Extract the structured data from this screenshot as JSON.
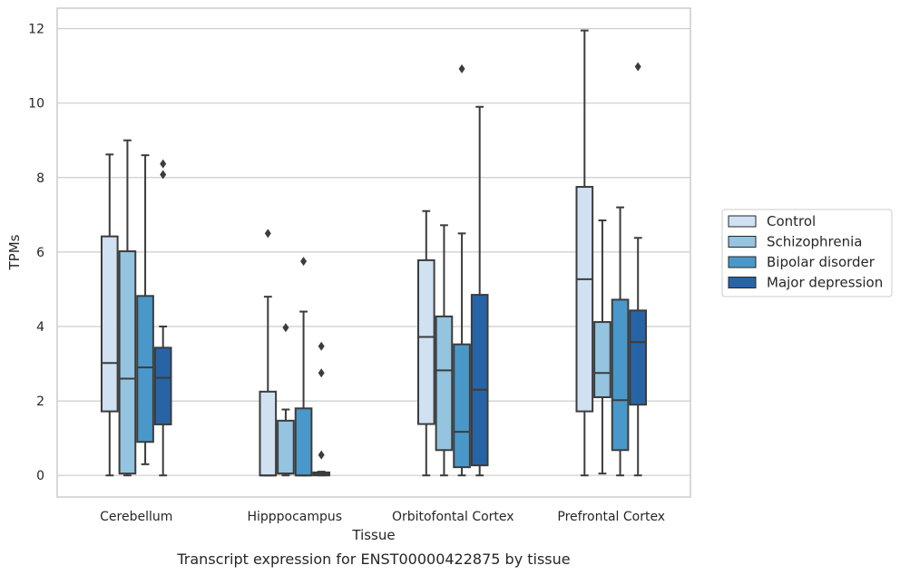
{
  "caption": "Transcript expression for ENST00000422875 by tissue",
  "chart_data": {
    "type": "box",
    "xlabel": "Tissue",
    "ylabel": "TPMs",
    "ylim": [
      -0.58,
      12.55
    ],
    "yticks": [
      0,
      2,
      4,
      6,
      8,
      10,
      12
    ],
    "grid": "horizontal",
    "legend_position": "right",
    "categories": [
      "Cerebellum",
      "Hipppocampus",
      "Orbitofontal Cortex",
      "Prefrontal Cortex"
    ],
    "series": [
      {
        "name": "Control",
        "color": "#d0e1f2",
        "boxes": [
          {
            "whislo": 0,
            "q1": 1.72,
            "med": 3.02,
            "q3": 6.42,
            "whishi": 8.62,
            "fliers": []
          },
          {
            "whislo": 0,
            "q1": 0,
            "med": 0,
            "q3": 2.25,
            "whishi": 4.8,
            "fliers": [
              6.5
            ]
          },
          {
            "whislo": 0,
            "q1": 1.38,
            "med": 3.72,
            "q3": 5.78,
            "whishi": 7.1,
            "fliers": []
          },
          {
            "whislo": 0,
            "q1": 1.72,
            "med": 5.27,
            "q3": 7.75,
            "whishi": 11.95,
            "fliers": []
          }
        ]
      },
      {
        "name": "Schizophrenia",
        "color": "#94c4df",
        "boxes": [
          {
            "whislo": 0,
            "q1": 0.05,
            "med": 2.6,
            "q3": 6.02,
            "whishi": 9.0,
            "fliers": []
          },
          {
            "whislo": 0,
            "q1": 0.05,
            "med": 0.05,
            "q3": 1.47,
            "whishi": 1.77,
            "fliers": [
              3.97
            ]
          },
          {
            "whislo": 0,
            "q1": 0.68,
            "med": 2.82,
            "q3": 4.27,
            "whishi": 6.72,
            "fliers": []
          },
          {
            "whislo": 0.05,
            "q1": 2.1,
            "med": 2.75,
            "q3": 4.12,
            "whishi": 6.85,
            "fliers": []
          }
        ]
      },
      {
        "name": "Bipolar disorder",
        "color": "#4a98c9",
        "boxes": [
          {
            "whislo": 0.3,
            "q1": 0.9,
            "med": 2.9,
            "q3": 4.82,
            "whishi": 8.6,
            "fliers": []
          },
          {
            "whislo": 0,
            "q1": 0,
            "med": 0,
            "q3": 1.8,
            "whishi": 4.4,
            "fliers": [
              5.75
            ]
          },
          {
            "whislo": 0,
            "q1": 0.22,
            "med": 1.17,
            "q3": 3.52,
            "whishi": 6.5,
            "fliers": [
              10.92
            ]
          },
          {
            "whislo": 0,
            "q1": 0.68,
            "med": 2.02,
            "q3": 4.72,
            "whishi": 7.2,
            "fliers": []
          }
        ]
      },
      {
        "name": "Major depression",
        "color": "#2764a6",
        "boxes": [
          {
            "whislo": 0,
            "q1": 1.37,
            "med": 2.62,
            "q3": 3.43,
            "whishi": 4.0,
            "fliers": [
              8.08,
              8.37
            ]
          },
          {
            "whislo": 0,
            "q1": 0,
            "med": 0.05,
            "q3": 0.08,
            "whishi": 0.1,
            "fliers": [
              0.55,
              2.75,
              3.47
            ]
          },
          {
            "whislo": 0,
            "q1": 0.27,
            "med": 2.3,
            "q3": 4.85,
            "whishi": 9.9,
            "fliers": []
          },
          {
            "whislo": 0,
            "q1": 1.9,
            "med": 3.58,
            "q3": 4.43,
            "whishi": 6.38,
            "fliers": [
              10.98
            ]
          }
        ]
      }
    ]
  },
  "colors": {
    "grid": "#cccccc",
    "frame": "#cccccc",
    "line": "#3c3c3c"
  }
}
